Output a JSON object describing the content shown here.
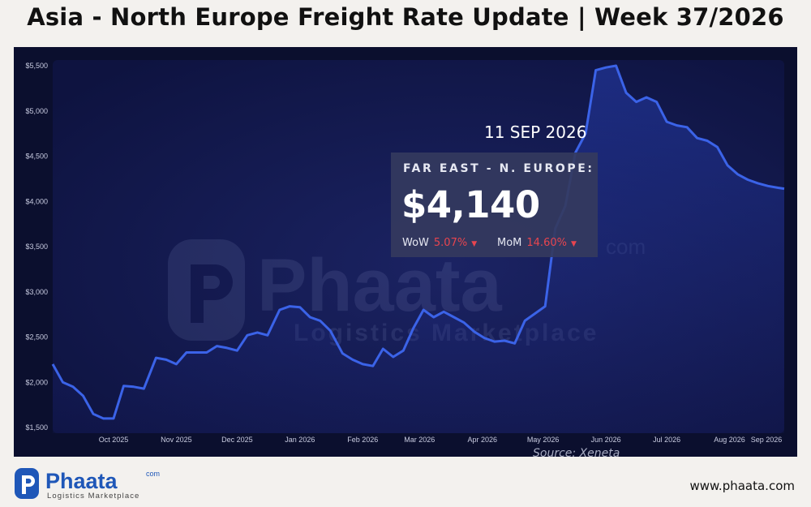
{
  "page": {
    "title": "Asia - North Europe Freight Rate Update | Week 37/2026",
    "footer_url": "www.phaata.com",
    "brand_name": "Phaata",
    "brand_suffix": "com",
    "brand_tagline": "Logistics Marketplace"
  },
  "panel": {
    "date": "11 SEP 2026",
    "route": "FAR EAST - N. EUROPE:",
    "price": "$4,140",
    "wow_label": "WoW",
    "wow_value": "5.07%",
    "mom_label": "MoM",
    "mom_value": "14.60%",
    "source": "Source: Xeneta"
  },
  "colors": {
    "line": "#3b63e8",
    "panel_bg": "#0b0f2e",
    "plot_bg": "#0f1440",
    "negative": "#e8454f"
  },
  "chart_data": {
    "type": "area",
    "title": "Asia - North Europe Freight Rate Update | Week 37/2026",
    "xlabel": "",
    "ylabel": "",
    "ylim": [
      1500,
      5500
    ],
    "yticks": [
      "$1,500",
      "$2,000",
      "$2,500",
      "$3,000",
      "$3,500",
      "$4,000",
      "$4,500",
      "$5,000",
      "$5,500"
    ],
    "xticks": [
      "Oct 2025",
      "Nov 2025",
      "Dec 2025",
      "Jan 2026",
      "Feb 2026",
      "Mar 2026",
      "Apr 2026",
      "May 2026",
      "Jun 2026",
      "Jul 2026",
      "Aug 2026",
      "Sep 2026"
    ],
    "grid": false,
    "series": [
      {
        "x": [
          "2025-09-15",
          "2025-09-20",
          "2025-09-25",
          "2025-09-30",
          "2025-10-05",
          "2025-10-10",
          "2025-10-15",
          "2025-10-20",
          "2025-10-25",
          "2025-10-30",
          "2025-11-05",
          "2025-11-10",
          "2025-11-15",
          "2025-11-20",
          "2025-11-25",
          "2025-11-30",
          "2025-12-05",
          "2025-12-10",
          "2025-12-15",
          "2025-12-20",
          "2025-12-25",
          "2025-12-30",
          "2026-01-05",
          "2026-01-10",
          "2026-01-15",
          "2026-01-20",
          "2026-01-25",
          "2026-01-30",
          "2026-02-05",
          "2026-02-10",
          "2026-02-15",
          "2026-02-20",
          "2026-02-25",
          "2026-03-02",
          "2026-03-07",
          "2026-03-12",
          "2026-03-17",
          "2026-03-22",
          "2026-03-27",
          "2026-04-01",
          "2026-04-06",
          "2026-04-11",
          "2026-04-16",
          "2026-04-21",
          "2026-04-26",
          "2026-05-01",
          "2026-05-06",
          "2026-05-11",
          "2026-05-16",
          "2026-05-21",
          "2026-05-26",
          "2026-05-31",
          "2026-06-05",
          "2026-06-10",
          "2026-06-15",
          "2026-06-20",
          "2026-06-25",
          "2026-06-30",
          "2026-07-05",
          "2026-07-10",
          "2026-07-15",
          "2026-07-20",
          "2026-07-25",
          "2026-07-30",
          "2026-08-04",
          "2026-08-09",
          "2026-08-14",
          "2026-08-19",
          "2026-08-24",
          "2026-08-29",
          "2026-09-03",
          "2026-09-08",
          "2026-09-11"
        ],
        "values": [
          2200,
          2000,
          1950,
          1850,
          1650,
          1600,
          1600,
          1960,
          1950,
          1930,
          2270,
          2250,
          2200,
          2330,
          2330,
          2330,
          2400,
          2380,
          2350,
          2520,
          2550,
          2520,
          2800,
          2840,
          2830,
          2720,
          2680,
          2570,
          2320,
          2250,
          2200,
          2180,
          2370,
          2280,
          2350,
          2600,
          2800,
          2720,
          2780,
          2720,
          2660,
          2560,
          2490,
          2450,
          2460,
          2430,
          2680,
          2760,
          2840,
          3700,
          3950,
          4540,
          4750,
          5450,
          5480,
          5500,
          5200,
          5100,
          5150,
          5100,
          4880,
          4840,
          4820,
          4700,
          4670,
          4600,
          4400,
          4300,
          4240,
          4200,
          4170,
          4150,
          4140
        ]
      }
    ]
  }
}
